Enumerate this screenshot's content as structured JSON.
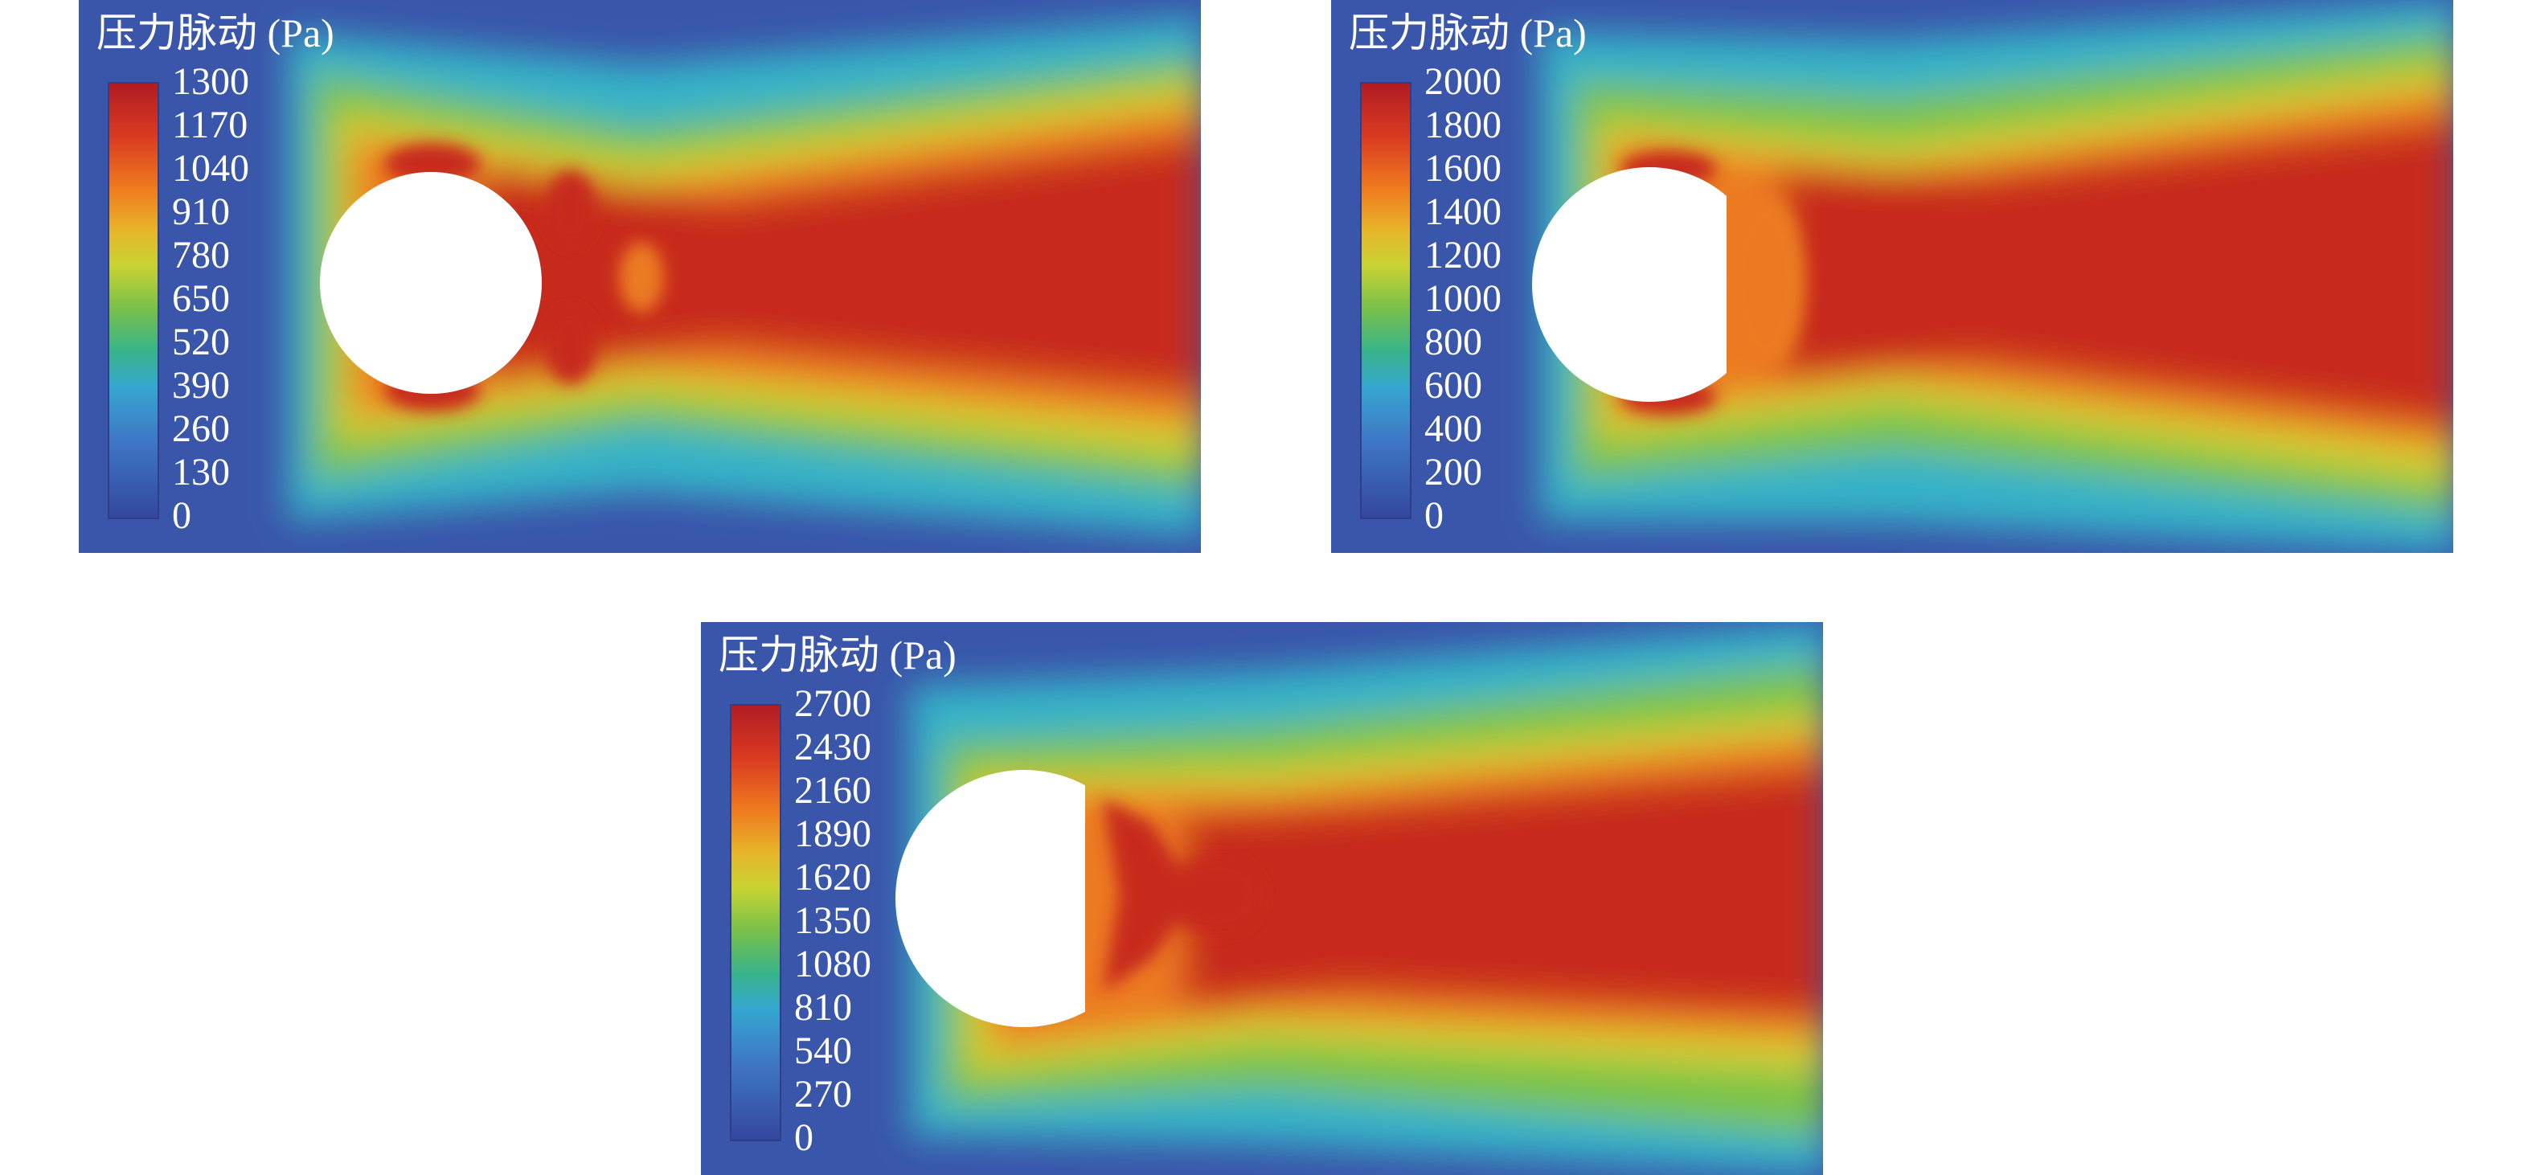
{
  "panels": [
    {
      "title": "压力脉动 (Pa)",
      "colorbar_ticks": [
        "1300",
        "1170",
        "1040",
        "910",
        "780",
        "650",
        "520",
        "390",
        "260",
        "130",
        "0"
      ],
      "obstacle": "full-circle"
    },
    {
      "title": "压力脉动 (Pa)",
      "colorbar_ticks": [
        "2000",
        "1800",
        "1600",
        "1400",
        "1200",
        "1000",
        "800",
        "600",
        "400",
        "200",
        "0"
      ],
      "obstacle": "truncated-circle"
    },
    {
      "title": "压力脉动 (Pa)",
      "colorbar_ticks": [
        "2700",
        "2430",
        "2160",
        "1890",
        "1620",
        "1350",
        "1080",
        "810",
        "540",
        "270",
        "0"
      ],
      "obstacle": "truncated-circle"
    }
  ],
  "colors": {
    "background_blue": "#3a56aa",
    "cyan": "#35b2c8",
    "green": "#7cc447",
    "yellow": "#d8cf30",
    "orange": "#ec7a20",
    "red": "#c7291f",
    "dark_red": "#b01c22",
    "obstacle": "#ffffff"
  }
}
